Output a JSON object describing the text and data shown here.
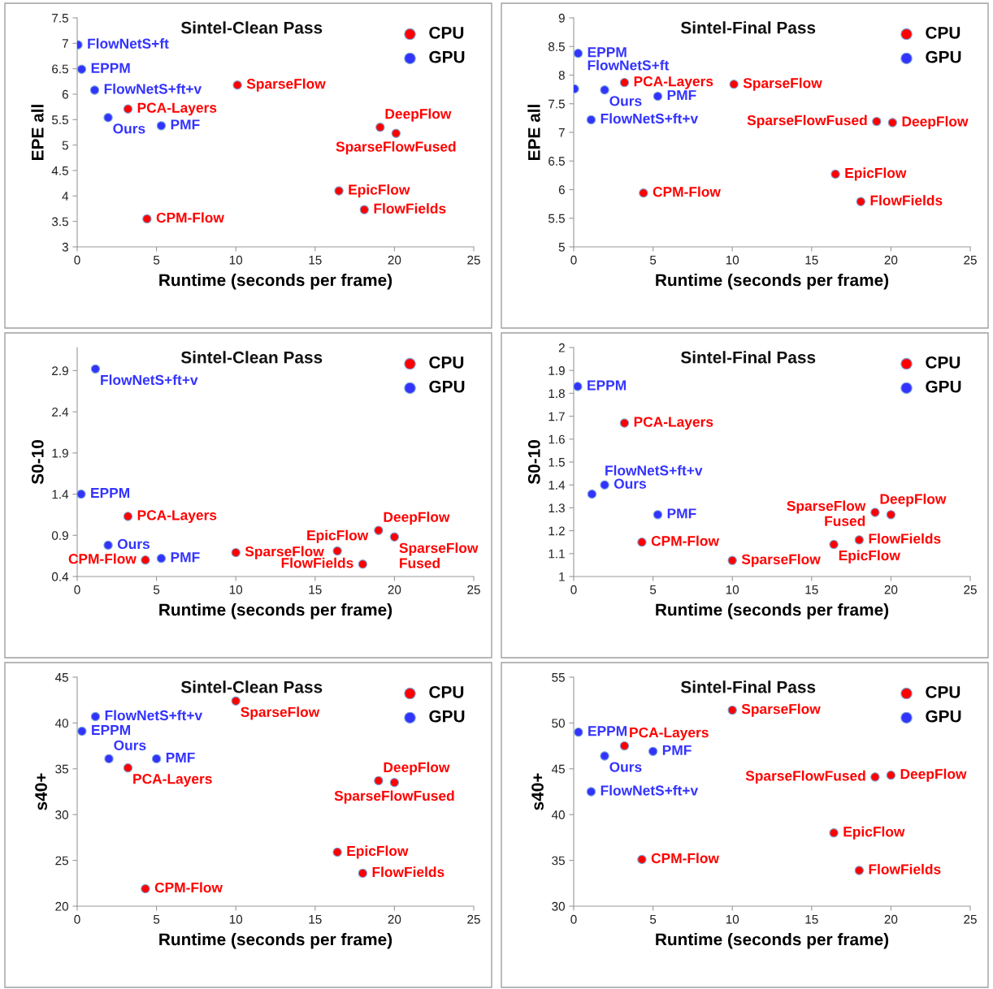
{
  "chart_data": [
    {
      "type": "scatter",
      "title": "Sintel-Clean Pass",
      "xlabel": "Runtime (seconds per frame)",
      "ylabel": "EPE all",
      "xlim": [
        0,
        25
      ],
      "xticks": [
        0,
        5,
        10,
        15,
        20,
        25
      ],
      "ylim": [
        3,
        7.5
      ],
      "yticks": [
        3,
        3.5,
        4,
        4.5,
        5,
        5.5,
        6,
        6.5,
        7,
        7.5
      ],
      "legend": "top right",
      "grid": false,
      "marker": "circle",
      "series": [
        {
          "name": "CPU",
          "color": "#ff0000",
          "x": [
            10.1,
            3.2,
            19.1,
            20.1,
            16.5,
            18.1,
            4.4
          ],
          "values": [
            6.18,
            5.71,
            5.35,
            5.23,
            4.1,
            3.73,
            3.55
          ]
        },
        {
          "name": "GPU",
          "color": "#3333ff",
          "x": [
            0.05,
            0.28,
            1.1,
            1.95,
            5.3
          ],
          "values": [
            6.97,
            6.49,
            6.08,
            5.54,
            5.38
          ]
        }
      ],
      "annotations": [
        {
          "text": "SparseFlow",
          "x": 10.1,
          "y": 6.18
        },
        {
          "text": "PCA-Layers",
          "x": 3.2,
          "y": 5.71
        },
        {
          "text": "DeepFlow",
          "x": 19.1,
          "y": 5.35
        },
        {
          "text": "SparseFlowFused",
          "x": 20.1,
          "y": 5.23
        },
        {
          "text": "EpicFlow",
          "x": 16.5,
          "y": 4.1
        },
        {
          "text": "FlowFields",
          "x": 18.1,
          "y": 3.73
        },
        {
          "text": "CPM-Flow",
          "x": 4.4,
          "y": 3.55
        },
        {
          "text": "FlowNetS+ft",
          "x": 0.05,
          "y": 6.97
        },
        {
          "text": "EPPM",
          "x": 0.28,
          "y": 6.49
        },
        {
          "text": "FlowNetS+ft+v",
          "x": 1.1,
          "y": 6.08
        },
        {
          "text": "Ours",
          "x": 1.95,
          "y": 5.54
        },
        {
          "text": "PMF",
          "x": 5.3,
          "y": 5.38
        }
      ]
    },
    {
      "type": "scatter",
      "title": "Sintel-Final Pass",
      "xlabel": "Runtime (seconds per frame)",
      "ylabel": "EPE all",
      "xlim": [
        0,
        25
      ],
      "xticks": [
        0,
        5,
        10,
        15,
        20,
        25
      ],
      "ylim": [
        5,
        9
      ],
      "yticks": [
        5,
        5.5,
        6,
        6.5,
        7,
        7.5,
        8,
        8.5,
        9
      ],
      "legend": "top right",
      "grid": false,
      "marker": "circle",
      "series": [
        {
          "name": "CPU",
          "color": "#ff0000",
          "x": [
            3.2,
            10.1,
            19.1,
            20.1,
            16.5,
            4.4,
            18.1
          ],
          "values": [
            7.87,
            7.84,
            7.19,
            7.17,
            6.27,
            5.94,
            5.79
          ]
        },
        {
          "name": "GPU",
          "color": "#3333ff",
          "x": [
            0.28,
            0.05,
            1.95,
            5.3,
            1.1
          ],
          "values": [
            8.38,
            7.76,
            7.74,
            7.63,
            7.22
          ]
        }
      ],
      "annotations": [
        {
          "text": "PCA-Layers",
          "x": 3.2,
          "y": 7.87
        },
        {
          "text": "SparseFlow",
          "x": 10.1,
          "y": 7.84
        },
        {
          "text": "SparseFlowFused",
          "x": 19.1,
          "y": 7.19
        },
        {
          "text": "DeepFlow",
          "x": 20.1,
          "y": 7.17
        },
        {
          "text": "EpicFlow",
          "x": 16.5,
          "y": 6.27
        },
        {
          "text": "CPM-Flow",
          "x": 4.4,
          "y": 5.94
        },
        {
          "text": "FlowFields",
          "x": 18.1,
          "y": 5.79
        },
        {
          "text": "EPPM",
          "x": 0.28,
          "y": 8.38
        },
        {
          "text": "FlowNetS+ft",
          "x": 0.05,
          "y": 7.76
        },
        {
          "text": "Ours",
          "x": 1.95,
          "y": 7.74
        },
        {
          "text": "PMF",
          "x": 5.3,
          "y": 7.63
        },
        {
          "text": "FlowNetS+ft+v",
          "x": 1.1,
          "y": 7.22
        }
      ]
    },
    {
      "type": "scatter",
      "title": "Sintel-Clean Pass",
      "xlabel": "Runtime (seconds per frame)",
      "ylabel": "S0-10",
      "xlim": [
        0,
        25
      ],
      "xticks": [
        0,
        5,
        10,
        15,
        20,
        25
      ],
      "ylim": [
        0.4,
        3.18
      ],
      "yticks": [
        0.4,
        0.9,
        1.4,
        1.9,
        2.4,
        2.9
      ],
      "legend": "top right",
      "grid": false,
      "marker": "circle",
      "series": [
        {
          "name": "CPU",
          "color": "#ff0000",
          "x": [
            3.2,
            19.0,
            20.0,
            10.0,
            16.4,
            18.0,
            4.3
          ],
          "values": [
            1.13,
            0.96,
            0.88,
            0.69,
            0.71,
            0.55,
            0.6
          ]
        },
        {
          "name": "GPU",
          "color": "#3333ff",
          "x": [
            1.15,
            0.25,
            1.95,
            5.3
          ],
          "values": [
            2.92,
            1.4,
            0.78,
            0.62
          ]
        }
      ],
      "annotations": [
        {
          "text": "PCA-Layers",
          "x": 3.2,
          "y": 1.13
        },
        {
          "text": "DeepFlow",
          "x": 19.0,
          "y": 0.96
        },
        {
          "text": "SparseFlow\nFused",
          "x": 20.0,
          "y": 0.88
        },
        {
          "text": "SparseFlow",
          "x": 10.0,
          "y": 0.69
        },
        {
          "text": "EpicFlow",
          "x": 16.4,
          "y": 0.71
        },
        {
          "text": "FlowFields",
          "x": 18.0,
          "y": 0.55
        },
        {
          "text": "CPM-Flow",
          "x": 4.3,
          "y": 0.6
        },
        {
          "text": "FlowNetS+ft+v",
          "x": 1.15,
          "y": 2.92
        },
        {
          "text": "EPPM",
          "x": 0.25,
          "y": 1.4
        },
        {
          "text": "Ours",
          "x": 1.95,
          "y": 0.78
        },
        {
          "text": "PMF",
          "x": 5.3,
          "y": 0.62
        }
      ]
    },
    {
      "type": "scatter",
      "title": "Sintel-Final Pass",
      "xlabel": "Runtime (seconds per frame)",
      "ylabel": "S0-10",
      "xlim": [
        0,
        25
      ],
      "xticks": [
        0,
        5,
        10,
        15,
        20,
        25
      ],
      "ylim": [
        1,
        2
      ],
      "yticks": [
        1,
        1.1,
        1.2,
        1.3,
        1.4,
        1.5,
        1.6,
        1.7,
        1.8,
        1.9,
        2
      ],
      "legend": "top right",
      "grid": false,
      "marker": "circle",
      "series": [
        {
          "name": "CPU",
          "color": "#ff0000",
          "x": [
            3.2,
            4.3,
            10.0,
            16.4,
            18.0,
            19.0,
            20.0
          ],
          "values": [
            1.67,
            1.15,
            1.07,
            1.14,
            1.16,
            1.28,
            1.27
          ]
        },
        {
          "name": "GPU",
          "color": "#3333ff",
          "x": [
            0.25,
            1.95,
            1.15,
            5.3
          ],
          "values": [
            1.83,
            1.4,
            1.36,
            1.27
          ]
        }
      ],
      "annotations": [
        {
          "text": "PCA-Layers",
          "x": 3.2,
          "y": 1.67
        },
        {
          "text": "CPM-Flow",
          "x": 4.3,
          "y": 1.15
        },
        {
          "text": "SparseFlow",
          "x": 10.0,
          "y": 1.07
        },
        {
          "text": "EpicFlow",
          "x": 16.4,
          "y": 1.14
        },
        {
          "text": "FlowFields",
          "x": 18.0,
          "y": 1.16
        },
        {
          "text": "DeepFlow",
          "x": 19.0,
          "y": 1.28
        },
        {
          "text": "SparseFlow\nFused",
          "x": 20.0,
          "y": 1.27
        },
        {
          "text": "EPPM",
          "x": 0.25,
          "y": 1.83
        },
        {
          "text": "Ours",
          "x": 1.95,
          "y": 1.4
        },
        {
          "text": "FlowNetS+ft+v",
          "x": 1.15,
          "y": 1.36
        },
        {
          "text": "PMF",
          "x": 5.3,
          "y": 1.27
        }
      ]
    },
    {
      "type": "scatter",
      "title": "Sintel-Clean Pass",
      "xlabel": "Runtime (seconds per frame)",
      "ylabel": "s40+",
      "xlim": [
        0,
        25
      ],
      "xticks": [
        0,
        5,
        10,
        15,
        20,
        25
      ],
      "ylim": [
        20,
        45
      ],
      "yticks": [
        20,
        25,
        30,
        35,
        40,
        45
      ],
      "legend": "top right",
      "grid": false,
      "marker": "circle",
      "series": [
        {
          "name": "CPU",
          "color": "#ff0000",
          "x": [
            10.0,
            3.2,
            19.0,
            20.0,
            16.4,
            18.0,
            4.3
          ],
          "values": [
            42.4,
            35.1,
            33.7,
            33.5,
            25.9,
            23.6,
            21.9
          ]
        },
        {
          "name": "GPU",
          "color": "#3333ff",
          "x": [
            1.15,
            0.3,
            2.0,
            5.0
          ],
          "values": [
            40.7,
            39.1,
            36.1,
            36.1
          ]
        }
      ],
      "annotations": [
        {
          "text": "SparseFlow",
          "x": 10.0,
          "y": 42.4
        },
        {
          "text": "PCA-Layers",
          "x": 3.2,
          "y": 35.1
        },
        {
          "text": "DeepFlow",
          "x": 19.0,
          "y": 33.7
        },
        {
          "text": "SparseFlowFused",
          "x": 20.0,
          "y": 33.5
        },
        {
          "text": "EpicFlow",
          "x": 16.4,
          "y": 25.9
        },
        {
          "text": "FlowFields",
          "x": 18.0,
          "y": 23.6
        },
        {
          "text": "CPM-Flow",
          "x": 4.3,
          "y": 21.9
        },
        {
          "text": "FlowNetS+ft+v",
          "x": 1.15,
          "y": 40.7
        },
        {
          "text": "EPPM",
          "x": 0.3,
          "y": 39.1
        },
        {
          "text": "Ours",
          "x": 2.0,
          "y": 36.1
        },
        {
          "text": "PMF",
          "x": 5.0,
          "y": 36.1
        }
      ]
    },
    {
      "type": "scatter",
      "title": "Sintel-Final Pass",
      "xlabel": "Runtime (seconds per frame)",
      "ylabel": "s40+",
      "xlim": [
        0,
        25
      ],
      "xticks": [
        0,
        5,
        10,
        15,
        20,
        25
      ],
      "ylim": [
        30,
        55
      ],
      "yticks": [
        30,
        35,
        40,
        45,
        50,
        55
      ],
      "legend": "top right",
      "grid": false,
      "marker": "circle",
      "series": [
        {
          "name": "CPU",
          "color": "#ff0000",
          "x": [
            10.0,
            3.2,
            19.0,
            20.0,
            16.4,
            4.3,
            18.0
          ],
          "values": [
            51.4,
            47.5,
            44.1,
            44.3,
            38.0,
            35.1,
            33.9
          ]
        },
        {
          "name": "GPU",
          "color": "#3333ff",
          "x": [
            0.3,
            1.95,
            5.0,
            1.1
          ],
          "values": [
            49.0,
            46.4,
            46.9,
            42.5
          ]
        }
      ],
      "annotations": [
        {
          "text": "SparseFlow",
          "x": 10.0,
          "y": 51.4
        },
        {
          "text": "PCA-Layers",
          "x": 3.2,
          "y": 47.5
        },
        {
          "text": "SparseFlowFused",
          "x": 19.0,
          "y": 44.1
        },
        {
          "text": "DeepFlow",
          "x": 20.0,
          "y": 44.3
        },
        {
          "text": "EpicFlow",
          "x": 16.4,
          "y": 38.0
        },
        {
          "text": "CPM-Flow",
          "x": 4.3,
          "y": 35.1
        },
        {
          "text": "FlowFields",
          "x": 18.0,
          "y": 33.9
        },
        {
          "text": "EPPM",
          "x": 0.3,
          "y": 49.0
        },
        {
          "text": "Ours",
          "x": 1.95,
          "y": 46.4
        },
        {
          "text": "PMF",
          "x": 5.0,
          "y": 46.9
        },
        {
          "text": "FlowNetS+ft+v",
          "x": 1.1,
          "y": 42.5
        }
      ]
    }
  ]
}
